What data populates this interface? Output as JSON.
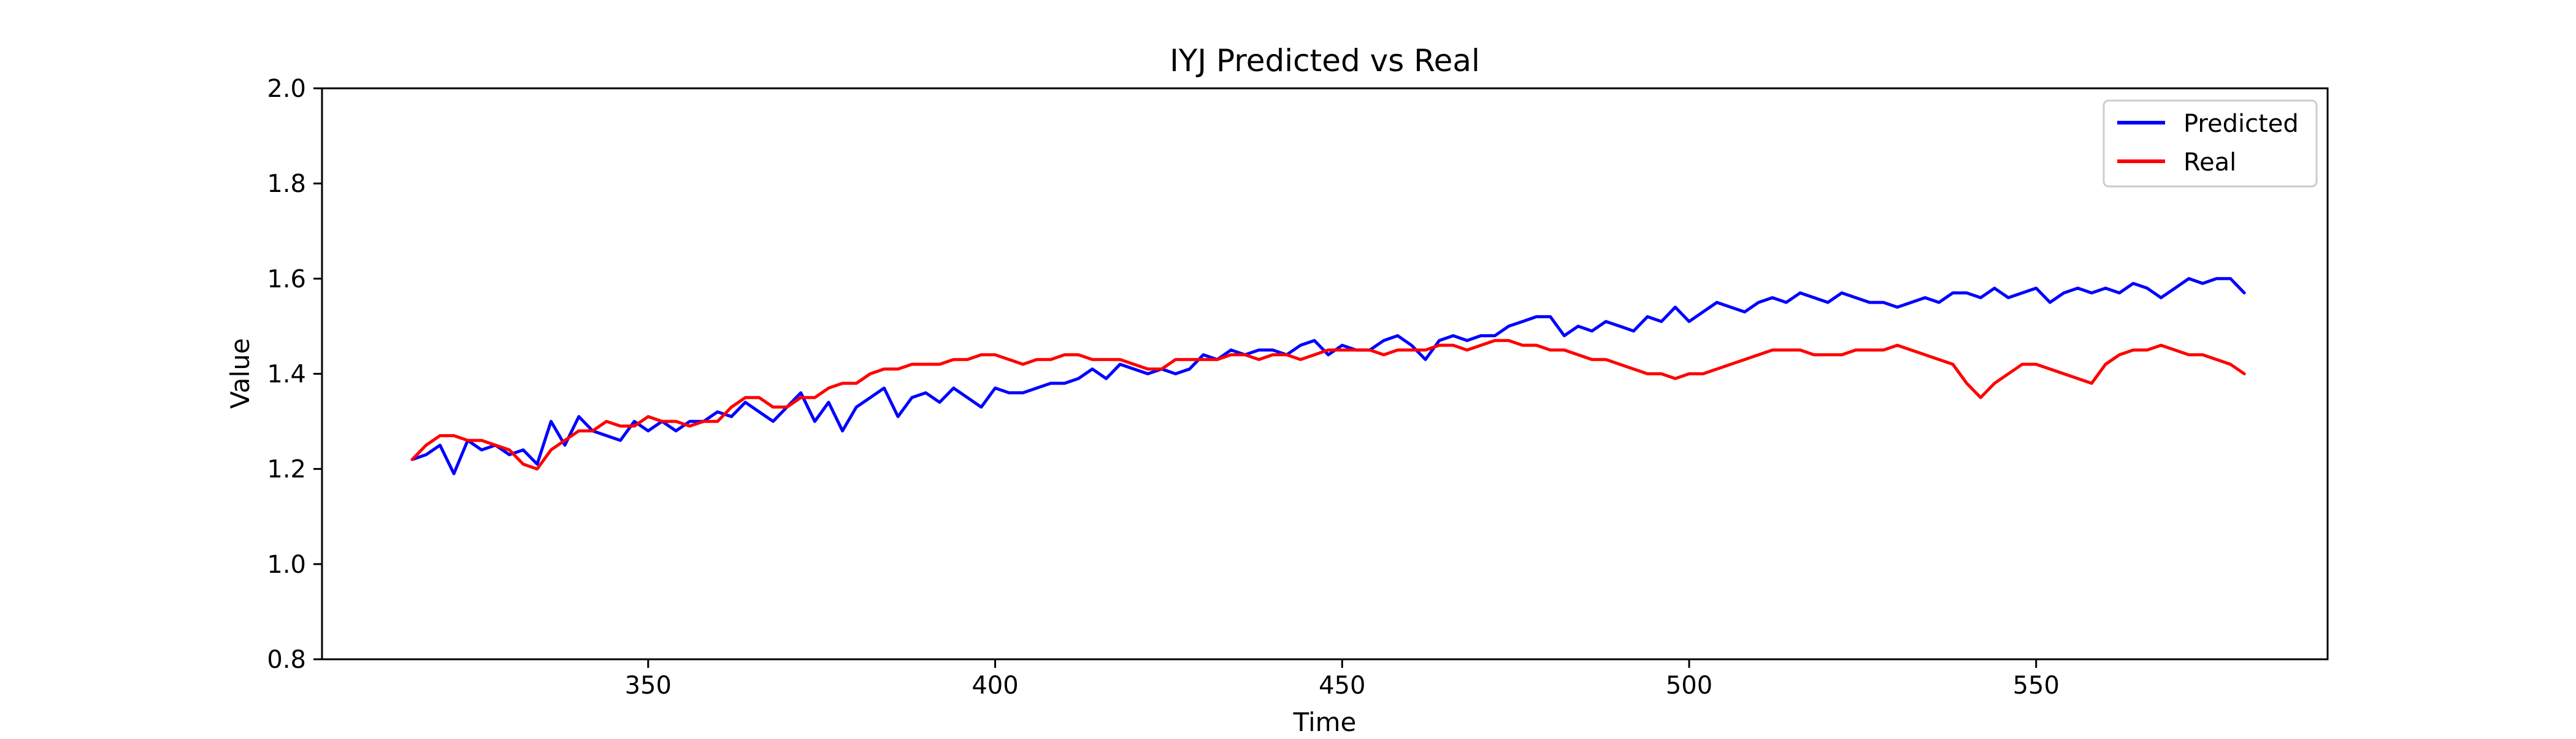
{
  "chart_data": {
    "type": "line",
    "title": "IYJ Predicted vs Real",
    "xlabel": "Time",
    "ylabel": "Value",
    "xlim": [
      303,
      592
    ],
    "ylim": [
      0.8,
      2.0
    ],
    "xticks": [
      350,
      400,
      450,
      500,
      550
    ],
    "yticks": [
      0.8,
      1.0,
      1.2,
      1.4,
      1.6,
      1.8,
      2.0
    ],
    "ytick_labels": [
      "0.8",
      "1.0",
      "1.2",
      "1.4",
      "1.6",
      "1.8",
      "2.0"
    ],
    "grid": false,
    "legend_position": "top-right",
    "series": [
      {
        "name": "Predicted",
        "color": "#0000ff",
        "x": [
          316,
          318,
          320,
          322,
          324,
          326,
          328,
          330,
          332,
          334,
          336,
          338,
          340,
          342,
          344,
          346,
          348,
          350,
          352,
          354,
          356,
          358,
          360,
          362,
          364,
          366,
          368,
          370,
          372,
          374,
          376,
          378,
          380,
          382,
          384,
          386,
          388,
          390,
          392,
          394,
          396,
          398,
          400,
          402,
          404,
          406,
          408,
          410,
          412,
          414,
          416,
          418,
          420,
          422,
          424,
          426,
          428,
          430,
          432,
          434,
          436,
          438,
          440,
          442,
          444,
          446,
          448,
          450,
          452,
          454,
          456,
          458,
          460,
          462,
          464,
          466,
          468,
          470,
          472,
          474,
          476,
          478,
          480,
          482,
          484,
          486,
          488,
          490,
          492,
          494,
          496,
          498,
          500,
          502,
          504,
          506,
          508,
          510,
          512,
          514,
          516,
          518,
          520,
          522,
          524,
          526,
          528,
          530,
          532,
          534,
          536,
          538,
          540,
          542,
          544,
          546,
          548,
          550,
          552,
          554,
          556,
          558,
          560,
          562,
          564,
          566,
          568,
          570,
          572,
          574,
          576,
          578,
          580
        ],
        "y": [
          1.22,
          1.23,
          1.25,
          1.19,
          1.26,
          1.24,
          1.25,
          1.23,
          1.24,
          1.21,
          1.3,
          1.25,
          1.31,
          1.28,
          1.27,
          1.26,
          1.3,
          1.28,
          1.3,
          1.28,
          1.3,
          1.3,
          1.32,
          1.31,
          1.34,
          1.32,
          1.3,
          1.33,
          1.36,
          1.3,
          1.34,
          1.28,
          1.33,
          1.35,
          1.37,
          1.31,
          1.35,
          1.36,
          1.34,
          1.37,
          1.35,
          1.33,
          1.37,
          1.36,
          1.36,
          1.37,
          1.38,
          1.38,
          1.39,
          1.41,
          1.39,
          1.42,
          1.41,
          1.4,
          1.41,
          1.4,
          1.41,
          1.44,
          1.43,
          1.45,
          1.44,
          1.45,
          1.45,
          1.44,
          1.46,
          1.47,
          1.44,
          1.46,
          1.45,
          1.45,
          1.47,
          1.48,
          1.46,
          1.43,
          1.47,
          1.48,
          1.47,
          1.48,
          1.48,
          1.5,
          1.51,
          1.52,
          1.52,
          1.48,
          1.5,
          1.49,
          1.51,
          1.5,
          1.49,
          1.52,
          1.51,
          1.54,
          1.51,
          1.53,
          1.55,
          1.54,
          1.53,
          1.55,
          1.56,
          1.55,
          1.57,
          1.56,
          1.55,
          1.57,
          1.56,
          1.55,
          1.55,
          1.54,
          1.55,
          1.56,
          1.55,
          1.57,
          1.57,
          1.56,
          1.58,
          1.56,
          1.57,
          1.58,
          1.55,
          1.57,
          1.58,
          1.57,
          1.58,
          1.57,
          1.59,
          1.58,
          1.56,
          1.58,
          1.6,
          1.59,
          1.6,
          1.6,
          1.57
        ]
      },
      {
        "name": "Real",
        "color": "#ff0000",
        "x": [
          316,
          318,
          320,
          322,
          324,
          326,
          328,
          330,
          332,
          334,
          336,
          338,
          340,
          342,
          344,
          346,
          348,
          350,
          352,
          354,
          356,
          358,
          360,
          362,
          364,
          366,
          368,
          370,
          372,
          374,
          376,
          378,
          380,
          382,
          384,
          386,
          388,
          390,
          392,
          394,
          396,
          398,
          400,
          402,
          404,
          406,
          408,
          410,
          412,
          414,
          416,
          418,
          420,
          422,
          424,
          426,
          428,
          430,
          432,
          434,
          436,
          438,
          440,
          442,
          444,
          446,
          448,
          450,
          452,
          454,
          456,
          458,
          460,
          462,
          464,
          466,
          468,
          470,
          472,
          474,
          476,
          478,
          480,
          482,
          484,
          486,
          488,
          490,
          492,
          494,
          496,
          498,
          500,
          502,
          504,
          506,
          508,
          510,
          512,
          514,
          516,
          518,
          520,
          522,
          524,
          526,
          528,
          530,
          532,
          534,
          536,
          538,
          540,
          542,
          544,
          546,
          548,
          550,
          552,
          554,
          556,
          558,
          560,
          562,
          564,
          566,
          568,
          570,
          572,
          574,
          576,
          578,
          580
        ],
        "y": [
          1.22,
          1.25,
          1.27,
          1.27,
          1.26,
          1.26,
          1.25,
          1.24,
          1.21,
          1.2,
          1.24,
          1.26,
          1.28,
          1.28,
          1.3,
          1.29,
          1.29,
          1.31,
          1.3,
          1.3,
          1.29,
          1.3,
          1.3,
          1.33,
          1.35,
          1.35,
          1.33,
          1.33,
          1.35,
          1.35,
          1.37,
          1.38,
          1.38,
          1.4,
          1.41,
          1.41,
          1.42,
          1.42,
          1.42,
          1.43,
          1.43,
          1.44,
          1.44,
          1.43,
          1.42,
          1.43,
          1.43,
          1.44,
          1.44,
          1.43,
          1.43,
          1.43,
          1.42,
          1.41,
          1.41,
          1.43,
          1.43,
          1.43,
          1.43,
          1.44,
          1.44,
          1.43,
          1.44,
          1.44,
          1.43,
          1.44,
          1.45,
          1.45,
          1.45,
          1.45,
          1.44,
          1.45,
          1.45,
          1.45,
          1.46,
          1.46,
          1.45,
          1.46,
          1.47,
          1.47,
          1.46,
          1.46,
          1.45,
          1.45,
          1.44,
          1.43,
          1.43,
          1.42,
          1.41,
          1.4,
          1.4,
          1.39,
          1.4,
          1.4,
          1.41,
          1.42,
          1.43,
          1.44,
          1.45,
          1.45,
          1.45,
          1.44,
          1.44,
          1.44,
          1.45,
          1.45,
          1.45,
          1.46,
          1.45,
          1.44,
          1.43,
          1.42,
          1.38,
          1.35,
          1.38,
          1.4,
          1.42,
          1.42,
          1.41,
          1.4,
          1.39,
          1.38,
          1.42,
          1.44,
          1.45,
          1.45,
          1.46,
          1.45,
          1.44,
          1.44,
          1.43,
          1.42,
          1.4
        ]
      }
    ]
  }
}
